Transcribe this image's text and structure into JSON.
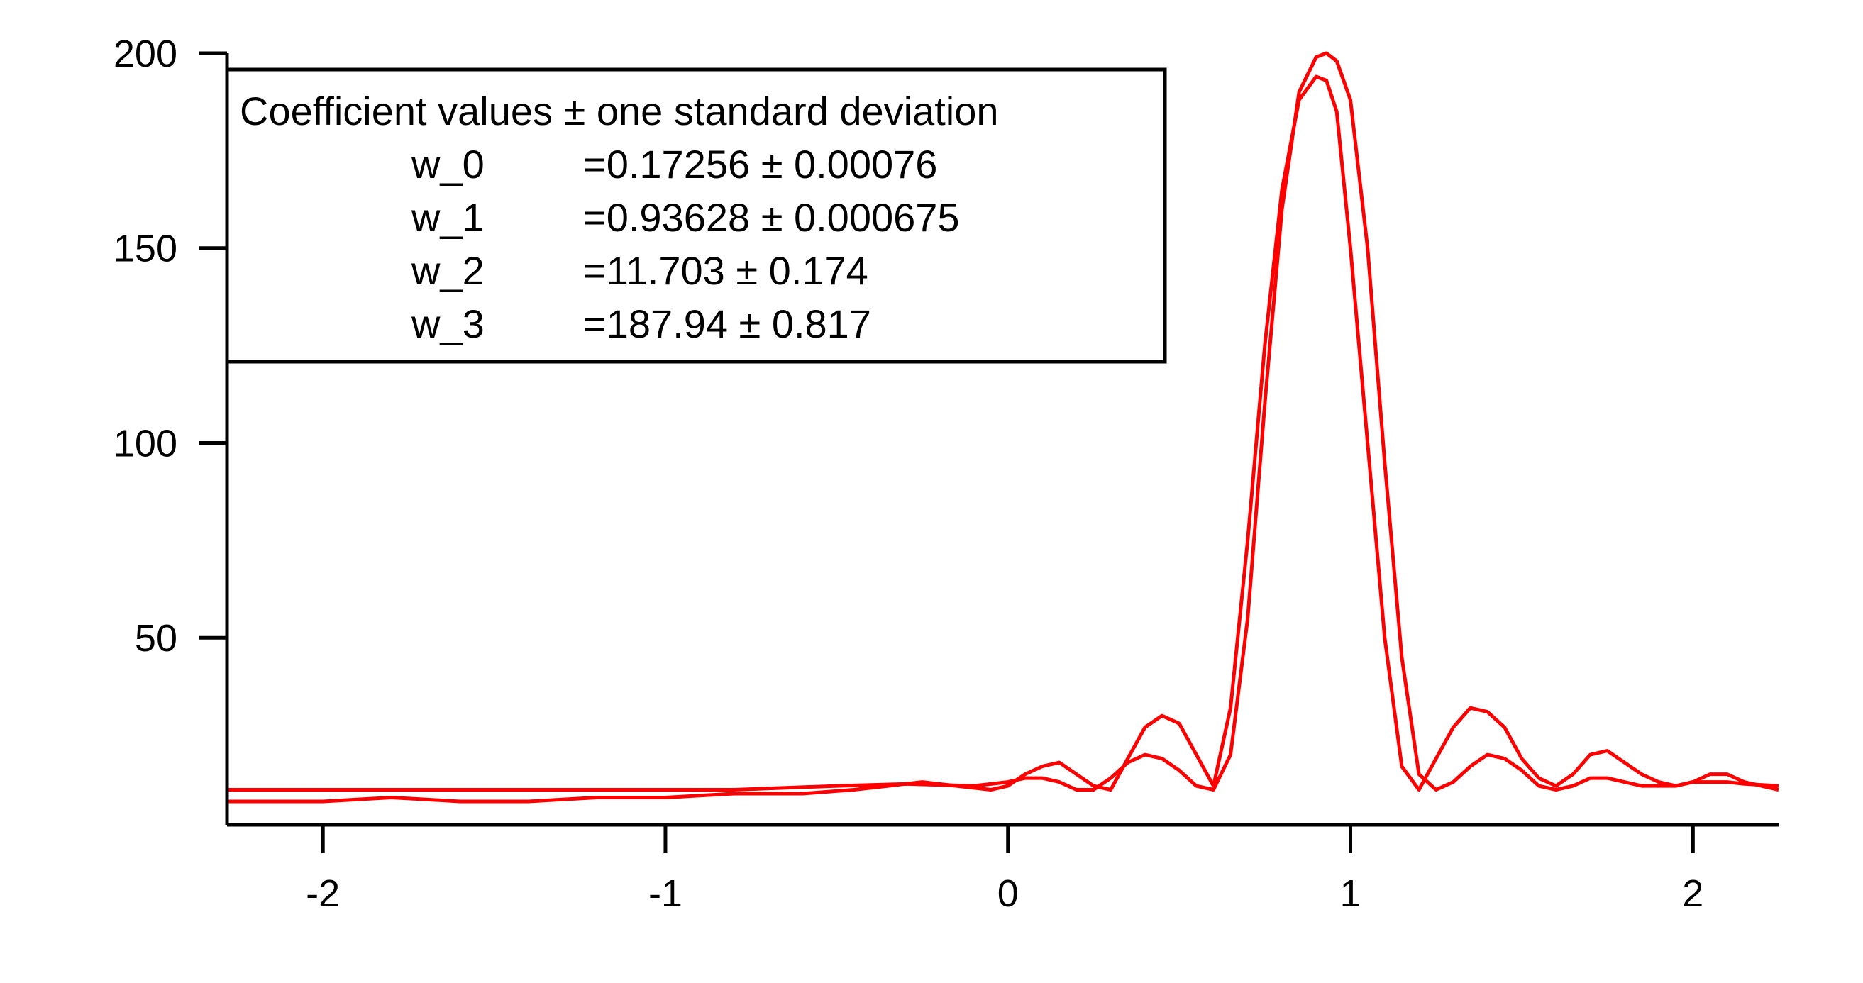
{
  "chart_data": {
    "type": "line",
    "title": "",
    "xlabel": "",
    "ylabel": "",
    "xlim": [
      -2.28,
      2.25
    ],
    "ylim": [
      2,
      200
    ],
    "x_ticks": [
      -2,
      -1,
      0,
      1,
      2
    ],
    "x_tick_labels": [
      "-2",
      "-1",
      "0",
      "1",
      "2"
    ],
    "y_ticks": [
      50,
      100,
      150,
      200
    ],
    "y_tick_labels": [
      "50",
      "100",
      "150",
      "200"
    ],
    "grid": false,
    "series_color": "#ff0000",
    "series": [
      {
        "x": [
          -2.28,
          -2.0,
          -1.8,
          -1.6,
          -1.4,
          -1.2,
          -1.0,
          -0.8,
          -0.6,
          -0.45,
          -0.35,
          -0.25,
          -0.15,
          -0.05,
          0.0,
          0.05,
          0.1,
          0.15,
          0.2,
          0.25,
          0.3,
          0.35,
          0.4,
          0.45,
          0.5,
          0.55,
          0.6,
          0.65,
          0.7,
          0.75,
          0.8,
          0.85,
          0.9,
          0.93,
          0.96,
          1.0,
          1.05,
          1.1,
          1.15,
          1.2,
          1.25,
          1.3,
          1.35,
          1.4,
          1.45,
          1.5,
          1.55,
          1.6,
          1.65,
          1.7,
          1.75,
          1.8,
          1.85,
          1.9,
          1.95,
          2.0,
          2.05,
          2.1,
          2.15,
          2.25
        ],
        "y": [
          8,
          8,
          9,
          8,
          8,
          9,
          9,
          10,
          10,
          11,
          12,
          13,
          12,
          11,
          12,
          15,
          17,
          18,
          15,
          12,
          11,
          19,
          27,
          30,
          28,
          20,
          12,
          32,
          75,
          125,
          165,
          188,
          194,
          193,
          185,
          150,
          100,
          50,
          17,
          11,
          19,
          27,
          32,
          31,
          27,
          19,
          14,
          12,
          15,
          20,
          21,
          18,
          15,
          13,
          12,
          13,
          15,
          15,
          13,
          11
        ]
      },
      {
        "x": [
          -2.28,
          -2.0,
          -1.6,
          -1.2,
          -0.8,
          -0.5,
          -0.3,
          -0.1,
          0.0,
          0.05,
          0.1,
          0.15,
          0.2,
          0.25,
          0.3,
          0.35,
          0.4,
          0.45,
          0.5,
          0.55,
          0.6,
          0.65,
          0.7,
          0.75,
          0.8,
          0.85,
          0.9,
          0.93,
          0.96,
          1.0,
          1.05,
          1.1,
          1.15,
          1.2,
          1.25,
          1.3,
          1.35,
          1.4,
          1.45,
          1.5,
          1.55,
          1.6,
          1.65,
          1.7,
          1.75,
          1.8,
          1.85,
          1.9,
          1.95,
          2.0,
          2.05,
          2.1,
          2.15,
          2.25
        ],
        "y": [
          11,
          11,
          11,
          11,
          11,
          12,
          12.5,
          12,
          13,
          14,
          14,
          13,
          11,
          11,
          14,
          18,
          20,
          19,
          16,
          12,
          11,
          20,
          55,
          110,
          160,
          190,
          199,
          200,
          198,
          188,
          150,
          95,
          45,
          15,
          11,
          13,
          17,
          20,
          19,
          16,
          12,
          11,
          12,
          14,
          14,
          13,
          12,
          12,
          12,
          13,
          13,
          13,
          12.5,
          12
        ]
      }
    ],
    "legend": {
      "header": "Coefficient values ± one standard deviation",
      "rows": [
        {
          "name": "w_0",
          "value": "=0.17256 ± 0.00076"
        },
        {
          "name": "w_1",
          "value": "=0.93628 ± 0.000675"
        },
        {
          "name": "w_2",
          "value": "=11.703 ± 0.174"
        },
        {
          "name": "w_3",
          "value": "=187.94 ± 0.817"
        }
      ]
    }
  }
}
